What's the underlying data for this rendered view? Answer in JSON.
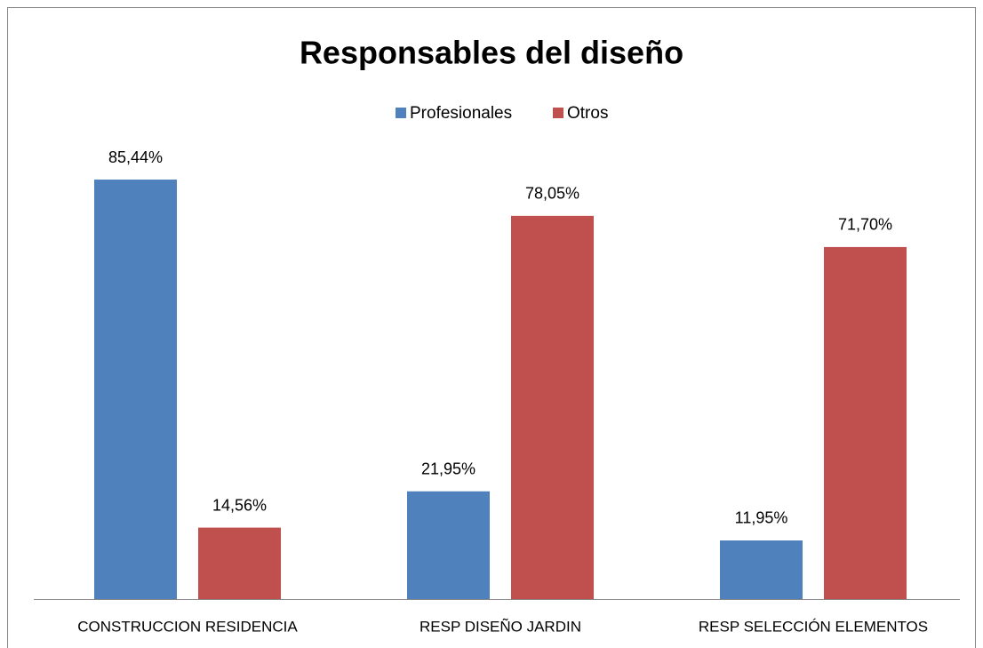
{
  "chart_data": {
    "type": "bar",
    "title": "Responsables del diseño",
    "categories": [
      "CONSTRUCCION RESIDENCIA",
      "RESP DISEÑO JARDIN",
      "RESP SELECCIÓN ELEMENTOS"
    ],
    "series": [
      {
        "name": "Profesionales",
        "color": "#4f81bd",
        "values": [
          85.44,
          21.95,
          11.95
        ],
        "value_labels": [
          "85,44%",
          "21,95%",
          "11,95%"
        ]
      },
      {
        "name": "Otros",
        "color": "#c0504d",
        "values": [
          14.56,
          78.05,
          71.7
        ],
        "value_labels": [
          "14,56%",
          "78,05%",
          "71,70%"
        ]
      }
    ],
    "legend": "top"
  }
}
